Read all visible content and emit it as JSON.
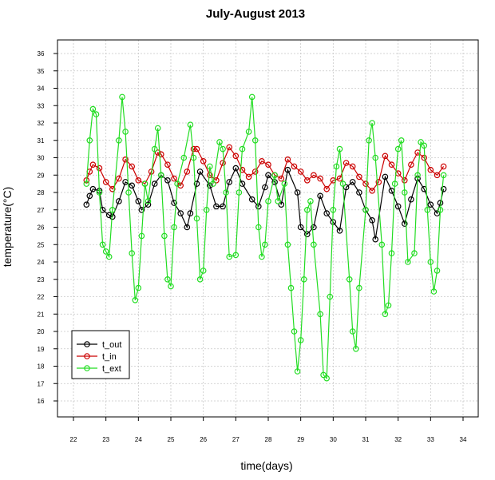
{
  "chart_data": {
    "type": "line",
    "title": "July-August 2013",
    "xlabel": "time(days)",
    "ylabel": "temperature(°C)",
    "xlim": [
      22,
      34
    ],
    "ylim": [
      16,
      36
    ],
    "x_ticks": [
      "22",
      "23",
      "24",
      "25",
      "26",
      "27",
      "28",
      "29",
      "30",
      "31",
      "32",
      "33",
      "34"
    ],
    "y_ticks": [
      "16",
      "17",
      "18",
      "19",
      "20",
      "21",
      "22",
      "23",
      "24",
      "25",
      "26",
      "27",
      "28",
      "29",
      "30",
      "31",
      "32",
      "33",
      "34",
      "35",
      "36"
    ],
    "grid": true,
    "legend_position": "bottom-left",
    "series": [
      {
        "name": "t_out",
        "color": "#000000",
        "x": [
          22.4,
          22.5,
          22.6,
          22.8,
          22.9,
          23.1,
          23.2,
          23.4,
          23.6,
          23.8,
          24.0,
          24.1,
          24.3,
          24.5,
          24.7,
          24.9,
          25.1,
          25.3,
          25.5,
          25.6,
          25.8,
          25.9,
          26.2,
          26.4,
          26.6,
          26.8,
          27.0,
          27.2,
          27.5,
          27.7,
          27.9,
          28.0,
          28.2,
          28.4,
          28.6,
          28.9,
          29.0,
          29.2,
          29.4,
          29.6,
          29.8,
          30.0,
          30.2,
          30.4,
          30.6,
          30.8,
          31.0,
          31.2,
          31.3,
          31.6,
          31.8,
          32.0,
          32.2,
          32.4,
          32.6,
          32.8,
          33.0,
          33.2,
          33.3,
          33.4
        ],
        "y": [
          27.3,
          27.8,
          28.2,
          28.1,
          27.0,
          26.7,
          26.6,
          27.5,
          28.6,
          28.4,
          27.5,
          27.0,
          27.3,
          28.5,
          29.0,
          28.7,
          27.4,
          26.8,
          26.0,
          26.8,
          28.5,
          29.2,
          28.4,
          27.2,
          27.2,
          28.6,
          29.4,
          28.5,
          27.6,
          27.2,
          28.3,
          29.0,
          28.6,
          27.3,
          29.3,
          28.0,
          26.0,
          25.6,
          26.0,
          27.8,
          26.8,
          26.3,
          25.8,
          28.3,
          28.6,
          28.0,
          27.0,
          26.4,
          25.3,
          28.9,
          28.1,
          27.2,
          26.2,
          27.6,
          28.8,
          28.2,
          27.3,
          26.8,
          27.4,
          28.2
        ]
      },
      {
        "name": "t_in",
        "color": "#cc0000",
        "x": [
          22.4,
          22.5,
          22.6,
          22.8,
          23.0,
          23.2,
          23.4,
          23.6,
          23.8,
          24.0,
          24.2,
          24.4,
          24.6,
          24.7,
          24.9,
          25.1,
          25.3,
          25.5,
          25.7,
          25.8,
          26.0,
          26.2,
          26.4,
          26.6,
          26.8,
          27.0,
          27.2,
          27.4,
          27.6,
          27.8,
          28.0,
          28.2,
          28.4,
          28.6,
          28.8,
          29.0,
          29.2,
          29.4,
          29.6,
          29.8,
          30.0,
          30.2,
          30.4,
          30.6,
          30.8,
          31.0,
          31.2,
          31.4,
          31.6,
          31.8,
          32.0,
          32.2,
          32.4,
          32.6,
          32.8,
          33.0,
          33.2,
          33.4
        ],
        "y": [
          28.7,
          29.2,
          29.6,
          29.4,
          28.6,
          28.2,
          28.8,
          29.9,
          29.5,
          28.7,
          28.5,
          29.2,
          30.3,
          30.2,
          29.6,
          28.8,
          28.4,
          29.2,
          30.5,
          30.5,
          29.8,
          29.0,
          28.7,
          29.7,
          30.6,
          30.1,
          29.3,
          28.9,
          29.2,
          29.8,
          29.6,
          29.0,
          28.8,
          29.9,
          29.5,
          29.2,
          28.7,
          29.0,
          28.8,
          28.2,
          28.7,
          28.8,
          29.7,
          29.5,
          28.9,
          28.5,
          28.1,
          28.6,
          30.1,
          29.6,
          29.1,
          28.7,
          29.6,
          30.3,
          30.0,
          29.3,
          29.0,
          29.5
        ]
      },
      {
        "name": "t_ext",
        "color": "#22dd22",
        "x": [
          22.4,
          22.5,
          22.6,
          22.7,
          22.8,
          22.9,
          23.0,
          23.1,
          23.2,
          23.4,
          23.5,
          23.6,
          23.7,
          23.8,
          23.9,
          24.0,
          24.1,
          24.2,
          24.3,
          24.5,
          24.6,
          24.7,
          24.8,
          24.9,
          25.0,
          25.1,
          25.2,
          25.4,
          25.6,
          25.7,
          25.8,
          25.9,
          26.0,
          26.1,
          26.2,
          26.3,
          26.5,
          26.6,
          26.7,
          26.8,
          27.0,
          27.1,
          27.2,
          27.4,
          27.5,
          27.6,
          27.7,
          27.8,
          27.9,
          28.0,
          28.2,
          28.3,
          28.5,
          28.6,
          28.7,
          28.8,
          28.9,
          29.0,
          29.1,
          29.2,
          29.3,
          29.4,
          29.6,
          29.7,
          29.8,
          29.9,
          30.0,
          30.1,
          30.2,
          30.3,
          30.5,
          30.6,
          30.7,
          30.8,
          31.0,
          31.1,
          31.2,
          31.3,
          31.5,
          31.6,
          31.7,
          31.8,
          31.9,
          32.0,
          32.1,
          32.2,
          32.3,
          32.5,
          32.6,
          32.7,
          32.8,
          32.9,
          33.0,
          33.1,
          33.2,
          33.3,
          33.4
        ],
        "y": [
          28.5,
          31.0,
          32.8,
          32.5,
          28.0,
          25.0,
          24.6,
          24.3,
          27.0,
          31.0,
          33.5,
          31.5,
          28.0,
          24.5,
          21.8,
          22.5,
          25.5,
          28.5,
          27.5,
          30.5,
          31.7,
          29.0,
          25.5,
          23.0,
          22.6,
          26.0,
          28.5,
          30.0,
          31.9,
          30.0,
          26.5,
          23.0,
          23.5,
          27.0,
          29.5,
          28.5,
          30.9,
          30.5,
          28.0,
          24.3,
          24.4,
          28.0,
          30.5,
          31.5,
          33.5,
          31.0,
          26.0,
          24.3,
          25.0,
          27.5,
          29.0,
          27.5,
          28.5,
          25.0,
          22.5,
          20.0,
          17.7,
          19.5,
          23.0,
          27.0,
          27.5,
          25.0,
          21.0,
          17.5,
          17.3,
          22.0,
          27.0,
          29.5,
          30.5,
          28.5,
          23.0,
          20.0,
          19.0,
          22.5,
          27.0,
          31.0,
          32.0,
          30.0,
          25.0,
          21.0,
          21.5,
          24.5,
          28.5,
          30.5,
          31.0,
          28.0,
          24.0,
          24.5,
          29.0,
          30.9,
          30.7,
          27.0,
          24.0,
          22.3,
          23.5,
          27.0,
          29.0
        ]
      }
    ]
  }
}
